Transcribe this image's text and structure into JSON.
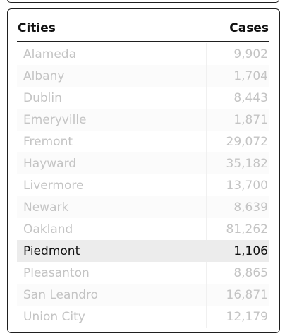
{
  "table": {
    "header": {
      "city": "Cities",
      "cases": "Cases"
    },
    "rows": [
      {
        "city": "Alameda",
        "cases": "9,902"
      },
      {
        "city": "Albany",
        "cases": "1,704"
      },
      {
        "city": "Dublin",
        "cases": "8,443"
      },
      {
        "city": "Emeryville",
        "cases": "1,871"
      },
      {
        "city": "Fremont",
        "cases": "29,072"
      },
      {
        "city": "Hayward",
        "cases": "35,182"
      },
      {
        "city": "Livermore",
        "cases": "13,700"
      },
      {
        "city": "Newark",
        "cases": "8,639"
      },
      {
        "city": "Oakland",
        "cases": "81,262"
      },
      {
        "city": "Piedmont",
        "cases": "1,106"
      },
      {
        "city": "Pleasanton",
        "cases": "8,865"
      },
      {
        "city": "San Leandro",
        "cases": "16,871"
      },
      {
        "city": "Union City",
        "cases": "12,179"
      }
    ],
    "selected_row": "Piedmont"
  },
  "colors": {
    "text_dim": "#c4c4c4",
    "text_active": "#111111",
    "selected_bg": "#ececec",
    "border": "#1f1f1f"
  }
}
